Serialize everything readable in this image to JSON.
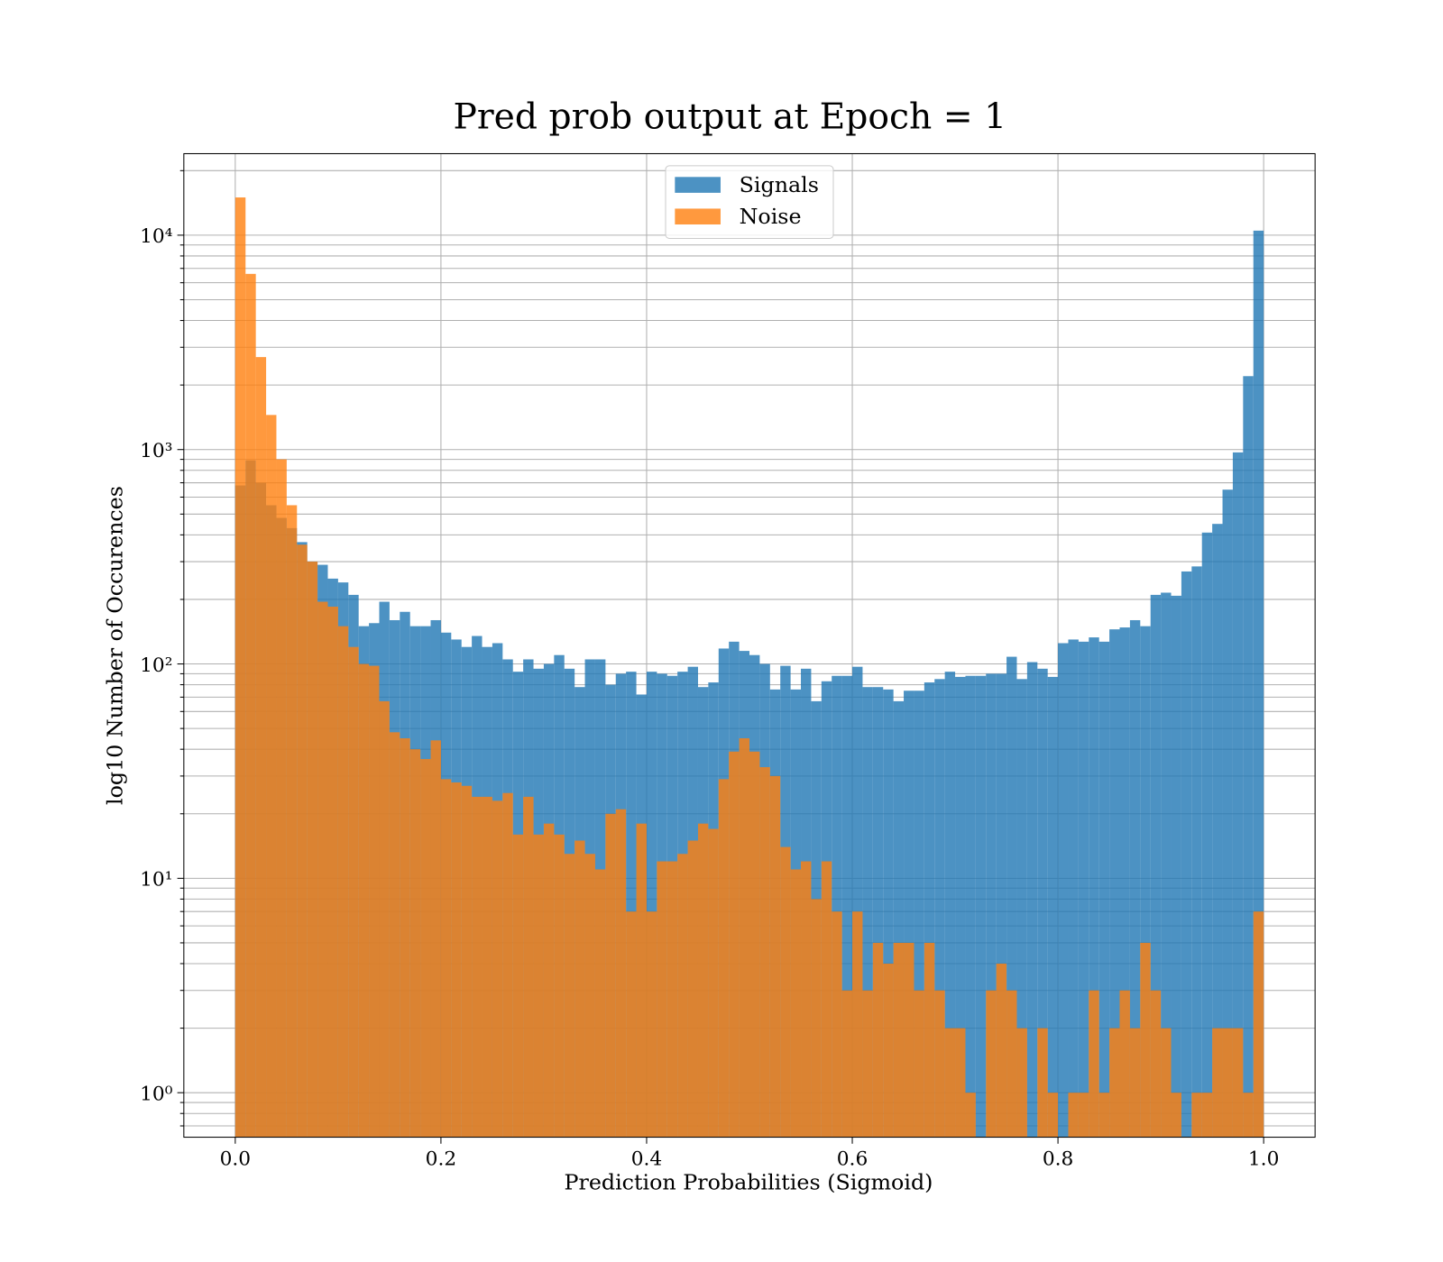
{
  "chart_data": {
    "type": "histogram",
    "title": "Pred prob output at Epoch = 1",
    "xlabel": "Prediction Probabilities (Sigmoid)",
    "ylabel": "log10 Number of Occurences",
    "yscale": "log",
    "grid": true,
    "legend": "upper center",
    "alpha": 0.8,
    "xlim": [
      -0.05,
      1.05
    ],
    "ylim": [
      0.62,
      24000
    ],
    "xticks": [
      {
        "value": 0,
        "label": "0.0"
      },
      {
        "value": 0.2,
        "label": "0.2"
      },
      {
        "value": 0.4,
        "label": "0.4"
      },
      {
        "value": 0.6,
        "label": "0.6"
      },
      {
        "value": 0.8,
        "label": "0.8"
      },
      {
        "value": 1,
        "label": "1.0"
      }
    ],
    "yticks": [
      {
        "value": 1,
        "label": "10⁰"
      },
      {
        "value": 10,
        "label": "10¹"
      },
      {
        "value": 100,
        "label": "10²"
      },
      {
        "value": 1000,
        "label": "10³"
      },
      {
        "value": 10000,
        "label": "10⁴"
      }
    ],
    "yticks_minor": [
      0.7,
      0.8,
      0.9,
      2,
      3,
      4,
      5,
      6,
      7,
      8,
      9,
      20,
      30,
      40,
      50,
      60,
      70,
      80,
      90,
      200,
      300,
      400,
      500,
      600,
      700,
      800,
      900,
      2000,
      3000,
      4000,
      5000,
      6000,
      7000,
      8000,
      9000,
      20000
    ],
    "bins": [
      0,
      0.01,
      0.02,
      0.03,
      0.04,
      0.05,
      0.06,
      0.07,
      0.08,
      0.09,
      0.1,
      0.11,
      0.12,
      0.13,
      0.14,
      0.15,
      0.16,
      0.17,
      0.18,
      0.19,
      0.2,
      0.21,
      0.22,
      0.23,
      0.24,
      0.25,
      0.26,
      0.27,
      0.28,
      0.29,
      0.3,
      0.31,
      0.32,
      0.33,
      0.34,
      0.35,
      0.36,
      0.37,
      0.38,
      0.39,
      0.4,
      0.41,
      0.42,
      0.43,
      0.44,
      0.45,
      0.46,
      0.47,
      0.48,
      0.49,
      0.5,
      0.51,
      0.52,
      0.53,
      0.54,
      0.55,
      0.56,
      0.57,
      0.58,
      0.59,
      0.6,
      0.61,
      0.62,
      0.63,
      0.64,
      0.65,
      0.66,
      0.67,
      0.68,
      0.69,
      0.7,
      0.71,
      0.72,
      0.73,
      0.74,
      0.75,
      0.76,
      0.77,
      0.78,
      0.79,
      0.8,
      0.81,
      0.82,
      0.83,
      0.84,
      0.85,
      0.86,
      0.87,
      0.88,
      0.89,
      0.9,
      0.91,
      0.92,
      0.93,
      0.94,
      0.95,
      0.96,
      0.97,
      0.98,
      0.99,
      1
    ],
    "series": [
      {
        "name": "Signals",
        "color": "#1f77b4",
        "values": [
          680,
          890,
          700,
          550,
          480,
          430,
          370,
          300,
          290,
          250,
          240,
          210,
          150,
          155,
          195,
          160,
          175,
          150,
          150,
          160,
          140,
          130,
          120,
          135,
          120,
          125,
          105,
          92,
          105,
          95,
          100,
          110,
          95,
          78,
          105,
          105,
          80,
          90,
          92,
          72,
          92,
          90,
          88,
          92,
          97,
          78,
          82,
          118,
          127,
          115,
          110,
          100,
          76,
          98,
          76,
          95,
          67,
          83,
          88,
          88,
          97,
          78,
          78,
          76,
          67,
          75,
          75,
          82,
          85,
          92,
          87,
          88,
          88,
          90,
          90,
          108,
          85,
          102,
          95,
          87,
          125,
          130,
          127,
          133,
          127,
          145,
          148,
          160,
          150,
          210,
          215,
          208,
          270,
          285,
          410,
          450,
          650,
          970,
          2200,
          10500
        ]
      },
      {
        "name": "Noise",
        "color": "#ff7f0e",
        "values": [
          15000,
          6600,
          2700,
          1450,
          900,
          550,
          360,
          300,
          195,
          185,
          150,
          120,
          100,
          98,
          67,
          48,
          45,
          40,
          36,
          44,
          29,
          28,
          27,
          24,
          24,
          23,
          25,
          16,
          24,
          16,
          18,
          16,
          13,
          15,
          13,
          11,
          20,
          21,
          7,
          18,
          7,
          12,
          12,
          13,
          15,
          18,
          17,
          29,
          39,
          45,
          39,
          33,
          30,
          14,
          11,
          12,
          8,
          12,
          7,
          3,
          7,
          3,
          5,
          4,
          5,
          5,
          3,
          5,
          3,
          2,
          2,
          1,
          0,
          3,
          4,
          3,
          2,
          0,
          2,
          1,
          0,
          1,
          1,
          3,
          1,
          2,
          3,
          2,
          5,
          3,
          2,
          1,
          0,
          1,
          1,
          2,
          2,
          2,
          1,
          7
        ]
      }
    ]
  }
}
